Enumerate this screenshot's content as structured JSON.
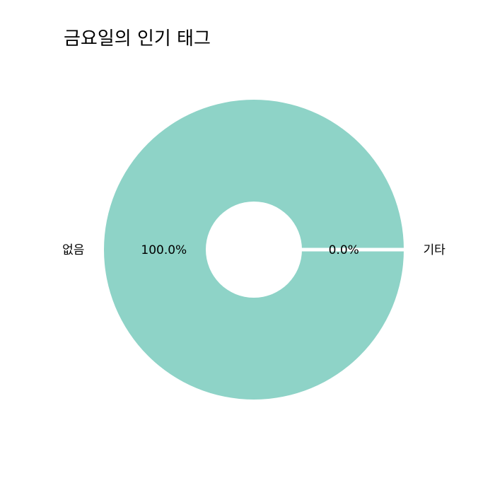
{
  "chart_data": {
    "type": "pie",
    "title": "금요일의 인기 태그",
    "donut": true,
    "slices": [
      {
        "label": "없음",
        "value": 100.0,
        "pct_label": "100.0%"
      },
      {
        "label": "기타",
        "value": 0.0,
        "pct_label": "0.0%"
      }
    ],
    "colors": {
      "slice": "#8ed3c7",
      "separator": "#ffffff",
      "background": "#ffffff"
    },
    "start": "3 o'clock",
    "direction": "counterclockwise",
    "legend": "none"
  }
}
